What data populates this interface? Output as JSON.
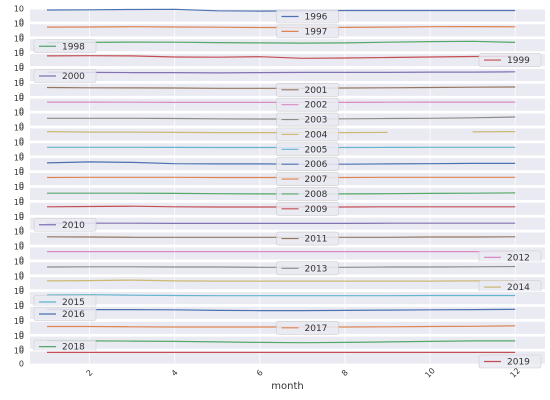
{
  "chart_data": [
    {
      "type": "line",
      "x": [
        1,
        2,
        3,
        4,
        5,
        6,
        7,
        8,
        9,
        10,
        11,
        12
      ],
      "series": [
        {
          "name": "1996",
          "color": "#4c72b0",
          "values": [
            9.2,
            9.4,
            9.6,
            9.8,
            8.6,
            8.4,
            8.6,
            8.8,
            8.8,
            8.8,
            8.8,
            8.8
          ]
        }
      ],
      "ylim": [
        0,
        10
      ],
      "yticks": [
        0,
        10
      ],
      "xlim": [
        0.6,
        12.7
      ],
      "grid": true,
      "legend": "upper center"
    },
    {
      "type": "line",
      "x": [
        1,
        2,
        3,
        4,
        5,
        6,
        7,
        8,
        9,
        10,
        11,
        12
      ],
      "series": [
        {
          "name": "1997",
          "color": "#dd8452",
          "values": [
            7.5,
            7.6,
            7.8,
            7.6,
            7.4,
            7.2,
            7.1,
            7.3,
            7.5,
            7.8,
            7.9,
            7.7
          ]
        }
      ],
      "ylim": [
        0,
        10
      ],
      "yticks": [
        0,
        10
      ],
      "xlim": [
        0.6,
        12.7
      ],
      "grid": true,
      "legend": "upper center"
    },
    {
      "type": "line",
      "x": [
        1,
        2,
        3,
        4,
        5,
        6,
        7,
        8,
        9,
        10,
        11,
        12
      ],
      "series": [
        {
          "name": "1998",
          "color": "#55a868",
          "values": [
            7.0,
            7.2,
            7.4,
            7.3,
            7.0,
            6.8,
            6.6,
            6.8,
            7.3,
            7.8,
            8.0,
            7.2
          ]
        }
      ],
      "ylim": [
        0,
        10
      ],
      "yticks": [
        0,
        10
      ],
      "xlim": [
        0.6,
        12.7
      ],
      "grid": true,
      "legend": "upper left"
    },
    {
      "type": "line",
      "x": [
        1,
        2,
        3,
        4,
        5,
        6,
        7,
        8,
        9,
        10,
        11,
        12
      ],
      "series": [
        {
          "name": "1999",
          "color": "#c44e52",
          "values": [
            8.2,
            8.4,
            8.2,
            7.4,
            7.2,
            7.6,
            6.4,
            6.6,
            7.0,
            7.4,
            7.8,
            8.0
          ]
        }
      ],
      "ylim": [
        0,
        10
      ],
      "yticks": [
        0,
        10
      ],
      "xlim": [
        0.6,
        12.7
      ],
      "grid": true,
      "legend": "center right"
    },
    {
      "type": "line",
      "x": [
        1,
        2,
        3,
        4,
        5,
        6,
        7,
        8,
        9,
        10,
        11,
        12
      ],
      "series": [
        {
          "name": "2000",
          "color": "#8172b3",
          "values": [
            7.2,
            7.0,
            6.8,
            6.8,
            6.6,
            6.8,
            7.0,
            7.0,
            7.0,
            7.2,
            7.2,
            7.4
          ]
        }
      ],
      "ylim": [
        0,
        10
      ],
      "yticks": [
        0,
        10
      ],
      "xlim": [
        0.6,
        12.7
      ],
      "grid": true,
      "legend": "upper left"
    },
    {
      "type": "line",
      "x": [
        1,
        2,
        3,
        4,
        5,
        6,
        7,
        8,
        9,
        10,
        11,
        12
      ],
      "series": [
        {
          "name": "2001",
          "color": "#937860",
          "values": [
            6.8,
            6.6,
            6.5,
            6.4,
            6.2,
            6.2,
            6.2,
            6.4,
            6.6,
            6.8,
            7.0,
            7.2
          ]
        }
      ],
      "ylim": [
        0,
        10
      ],
      "yticks": [
        0,
        10
      ],
      "xlim": [
        0.6,
        12.7
      ],
      "grid": true,
      "legend": "center"
    },
    {
      "type": "line",
      "x": [
        1,
        2,
        3,
        4,
        5,
        6,
        7,
        8,
        9,
        10,
        11,
        12
      ],
      "series": [
        {
          "name": "2002",
          "color": "#da8bc3",
          "values": [
            7.0,
            7.0,
            6.9,
            6.8,
            6.8,
            6.8,
            6.8,
            6.8,
            6.9,
            7.0,
            7.0,
            7.0
          ]
        }
      ],
      "ylim": [
        0,
        10
      ],
      "yticks": [
        0,
        10
      ],
      "xlim": [
        0.6,
        12.7
      ],
      "grid": true,
      "legend": "center"
    },
    {
      "type": "line",
      "x": [
        1,
        2,
        3,
        4,
        5,
        6,
        7,
        8,
        9,
        10,
        11,
        12
      ],
      "series": [
        {
          "name": "2003",
          "color": "#8c8c8c",
          "values": [
            6.0,
            6.0,
            6.0,
            5.8,
            5.6,
            5.4,
            5.4,
            5.6,
            5.8,
            6.0,
            6.4,
            7.0
          ]
        }
      ],
      "ylim": [
        0,
        10
      ],
      "yticks": [
        0,
        10
      ],
      "xlim": [
        0.6,
        12.7
      ],
      "grid": true,
      "legend": "center"
    },
    {
      "type": "line",
      "x": [
        1,
        2,
        3,
        4,
        5,
        6,
        7,
        8,
        9,
        10,
        11,
        12
      ],
      "series": [
        {
          "name": "2004",
          "color": "#ccb974",
          "values": [
            7.2,
            6.8,
            6.8,
            6.6,
            6.4,
            6.4,
            6.4,
            6.4,
            6.6,
            null,
            7.0,
            7.2
          ]
        }
      ],
      "ylim": [
        0,
        10
      ],
      "yticks": [
        0,
        10
      ],
      "xlim": [
        0.6,
        12.7
      ],
      "grid": true,
      "legend": "center"
    },
    {
      "type": "line",
      "x": [
        1,
        2,
        3,
        4,
        5,
        6,
        7,
        8,
        9,
        10,
        11,
        12
      ],
      "series": [
        {
          "name": "2005",
          "color": "#64b5cd",
          "values": [
            6.6,
            6.6,
            6.6,
            6.5,
            6.4,
            6.4,
            6.4,
            6.4,
            6.5,
            6.6,
            6.6,
            6.6
          ]
        }
      ],
      "ylim": [
        0,
        10
      ],
      "yticks": [
        0,
        10
      ],
      "xlim": [
        0.6,
        12.7
      ],
      "grid": true,
      "legend": "center"
    },
    {
      "type": "line",
      "x": [
        1,
        2,
        3,
        4,
        5,
        6,
        7,
        8,
        9,
        10,
        11,
        12
      ],
      "series": [
        {
          "name": "2006",
          "color": "#4c72b0",
          "values": [
            6.0,
            6.8,
            6.4,
            5.4,
            5.2,
            5.2,
            5.0,
            5.0,
            5.2,
            5.4,
            5.6,
            5.6
          ]
        }
      ],
      "ylim": [
        0,
        10
      ],
      "yticks": [
        0,
        10
      ],
      "xlim": [
        0.6,
        12.7
      ],
      "grid": true,
      "legend": "center"
    },
    {
      "type": "line",
      "x": [
        1,
        2,
        3,
        4,
        5,
        6,
        7,
        8,
        9,
        10,
        11,
        12
      ],
      "series": [
        {
          "name": "2007",
          "color": "#dd8452",
          "values": [
            6.2,
            6.4,
            6.4,
            6.4,
            6.2,
            6.2,
            6.2,
            6.2,
            6.4,
            6.4,
            6.4,
            6.4
          ]
        }
      ],
      "ylim": [
        0,
        10
      ],
      "yticks": [
        0,
        10
      ],
      "xlim": [
        0.6,
        12.7
      ],
      "grid": true,
      "legend": "center"
    },
    {
      "type": "line",
      "x": [
        1,
        2,
        3,
        4,
        5,
        6,
        7,
        8,
        9,
        10,
        11,
        12
      ],
      "series": [
        {
          "name": "2008",
          "color": "#55a868",
          "values": [
            5.6,
            5.6,
            5.6,
            5.4,
            5.2,
            5.0,
            5.0,
            5.0,
            5.2,
            5.4,
            5.6,
            5.8
          ]
        }
      ],
      "ylim": [
        0,
        10
      ],
      "yticks": [
        0,
        10
      ],
      "xlim": [
        0.6,
        12.7
      ],
      "grid": true,
      "legend": "center"
    },
    {
      "type": "line",
      "x": [
        1,
        2,
        3,
        4,
        5,
        6,
        7,
        8,
        9,
        10,
        11,
        12
      ],
      "series": [
        {
          "name": "2009",
          "color": "#c44e52",
          "values": [
            6.6,
            6.8,
            7.0,
            6.6,
            6.4,
            6.4,
            6.4,
            6.4,
            6.6,
            6.6,
            6.6,
            6.6
          ]
        }
      ],
      "ylim": [
        0,
        10
      ],
      "yticks": [
        0,
        10
      ],
      "xlim": [
        0.6,
        12.7
      ],
      "grid": true,
      "legend": "center"
    },
    {
      "type": "line",
      "x": [
        1,
        2,
        3,
        4,
        5,
        6,
        7,
        8,
        9,
        10,
        11,
        12
      ],
      "series": [
        {
          "name": "2010",
          "color": "#8172b3",
          "values": [
            5.4,
            5.4,
            5.4,
            5.2,
            5.2,
            5.2,
            5.2,
            5.2,
            5.4,
            5.4,
            5.4,
            5.4
          ]
        }
      ],
      "ylim": [
        0,
        10
      ],
      "yticks": [
        0,
        10
      ],
      "xlim": [
        0.6,
        12.7
      ],
      "grid": true,
      "legend": "upper left"
    },
    {
      "type": "line",
      "x": [
        1,
        2,
        3,
        4,
        5,
        6,
        7,
        8,
        9,
        10,
        11,
        12
      ],
      "series": [
        {
          "name": "2011",
          "color": "#937860",
          "values": [
            6.4,
            6.2,
            6.0,
            6.0,
            6.0,
            6.0,
            6.0,
            6.0,
            6.0,
            6.2,
            6.2,
            6.4
          ]
        }
      ],
      "ylim": [
        0,
        10
      ],
      "yticks": [
        0,
        10
      ],
      "xlim": [
        0.6,
        12.7
      ],
      "grid": true,
      "legend": "center"
    },
    {
      "type": "line",
      "x": [
        1,
        2,
        3,
        4,
        5,
        6,
        7,
        8,
        9,
        10,
        11,
        12
      ],
      "series": [
        {
          "name": "2012",
          "color": "#da8bc3",
          "values": [
            6.4,
            6.4,
            6.4,
            6.4,
            6.4,
            6.4,
            6.4,
            6.4,
            6.4,
            6.4,
            6.4,
            6.4
          ]
        }
      ],
      "ylim": [
        0,
        10
      ],
      "yticks": [
        0,
        10
      ],
      "xlim": [
        0.6,
        12.7
      ],
      "grid": true,
      "legend": "lower right"
    },
    {
      "type": "line",
      "x": [
        1,
        2,
        3,
        4,
        5,
        6,
        7,
        8,
        9,
        10,
        11,
        12
      ],
      "series": [
        {
          "name": "2013",
          "color": "#8c8c8c",
          "values": [
            6.0,
            6.2,
            6.2,
            6.0,
            6.0,
            5.8,
            5.8,
            5.8,
            6.0,
            6.0,
            6.2,
            6.4
          ]
        }
      ],
      "ylim": [
        0,
        10
      ],
      "yticks": [
        0,
        10
      ],
      "xlim": [
        0.6,
        12.7
      ],
      "grid": true,
      "legend": "center"
    },
    {
      "type": "line",
      "x": [
        1,
        2,
        3,
        4,
        5,
        6,
        7,
        8,
        9,
        10,
        11,
        12
      ],
      "series": [
        {
          "name": "2014",
          "color": "#ccb974",
          "values": [
            6.8,
            7.0,
            7.4,
            6.8,
            6.6,
            6.6,
            6.6,
            6.6,
            6.6,
            6.6,
            6.8,
            6.8
          ]
        }
      ],
      "ylim": [
        0,
        10
      ],
      "yticks": [
        0,
        10
      ],
      "xlim": [
        0.6,
        12.7
      ],
      "grid": true,
      "legend": "lower right"
    },
    {
      "type": "line",
      "x": [
        1,
        2,
        3,
        4,
        5,
        6,
        7,
        8,
        9,
        10,
        11,
        12
      ],
      "series": [
        {
          "name": "2015",
          "color": "#64b5cd",
          "values": [
            7.4,
            7.6,
            7.2,
            7.0,
            6.8,
            6.8,
            6.8,
            6.8,
            6.8,
            7.0,
            7.0,
            7.0
          ]
        }
      ],
      "ylim": [
        0,
        10
      ],
      "yticks": [
        0,
        10
      ],
      "xlim": [
        0.6,
        12.7
      ],
      "grid": true,
      "legend": "lower left"
    },
    {
      "type": "line",
      "x": [
        1,
        2,
        3,
        4,
        5,
        6,
        7,
        8,
        9,
        10,
        11,
        12
      ],
      "series": [
        {
          "name": "2016",
          "color": "#4c72b0",
          "values": [
            7.8,
            7.6,
            7.6,
            7.4,
            7.0,
            6.8,
            6.8,
            7.0,
            7.2,
            7.4,
            7.6,
            7.8
          ]
        }
      ],
      "ylim": [
        0,
        10
      ],
      "yticks": [
        0,
        10
      ],
      "xlim": [
        0.6,
        12.7
      ],
      "grid": true,
      "legend": "upper left"
    },
    {
      "type": "line",
      "x": [
        1,
        2,
        3,
        4,
        5,
        6,
        7,
        8,
        9,
        10,
        11,
        12
      ],
      "series": [
        {
          "name": "2017",
          "color": "#dd8452",
          "values": [
            6.0,
            6.0,
            5.8,
            5.6,
            5.6,
            5.6,
            5.6,
            5.6,
            5.8,
            6.0,
            6.2,
            6.6
          ]
        }
      ],
      "ylim": [
        0,
        10
      ],
      "yticks": [
        0,
        10
      ],
      "xlim": [
        0.6,
        12.7
      ],
      "grid": true,
      "legend": "center"
    },
    {
      "type": "line",
      "x": [
        1,
        2,
        3,
        4,
        5,
        6,
        7,
        8,
        9,
        10,
        11,
        12
      ],
      "series": [
        {
          "name": "2018",
          "color": "#55a868",
          "values": [
            6.6,
            6.4,
            6.2,
            6.0,
            5.6,
            5.2,
            5.0,
            5.2,
            5.6,
            6.0,
            6.4,
            6.4
          ]
        }
      ],
      "ylim": [
        0,
        10
      ],
      "yticks": [
        0,
        10
      ],
      "xlim": [
        0.6,
        12.7
      ],
      "grid": true,
      "legend": "lower left"
    },
    {
      "type": "line",
      "x": [
        1,
        2,
        3,
        4,
        5,
        6,
        7,
        8,
        9,
        10,
        11,
        12
      ],
      "series": [
        {
          "name": "2019",
          "color": "#c44e52",
          "values": [
            9.0,
            9.0,
            9.0,
            9.0,
            9.0,
            9.0,
            9.0,
            9.0,
            9.0,
            9.0,
            9.0,
            9.0
          ]
        }
      ],
      "ylim": [
        0,
        10
      ],
      "yticks": [
        0,
        10
      ],
      "xlim": [
        0.6,
        12.7
      ],
      "xticks": [
        2,
        4,
        6,
        8,
        10,
        12
      ],
      "xlabel": "month",
      "grid": true,
      "legend": "lower right"
    }
  ]
}
